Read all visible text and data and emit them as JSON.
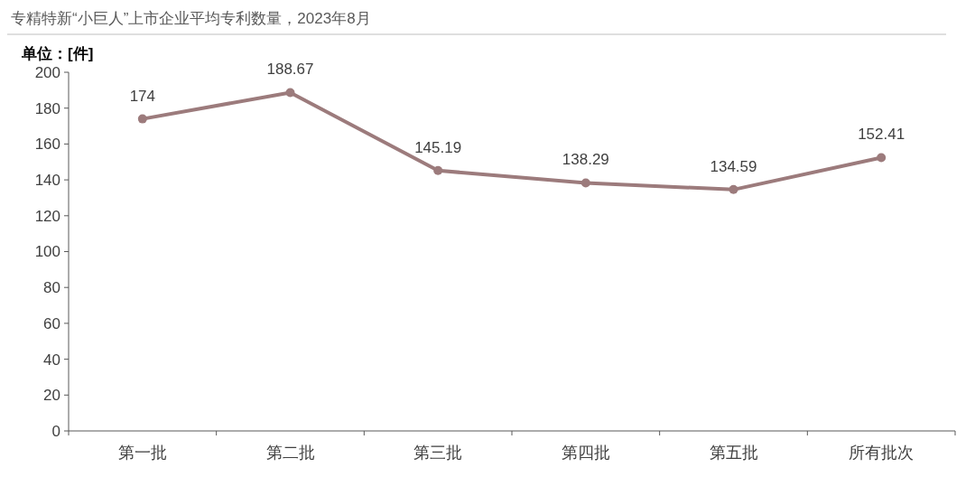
{
  "chart_data": {
    "type": "line",
    "title": "专精特新“小巨人”上市企业平均专利数量，2023年8月",
    "ylabel": "单位：[件]",
    "categories": [
      "第一批",
      "第二批",
      "第三批",
      "第四批",
      "第五批",
      "所有批次"
    ],
    "series": [
      {
        "color": "#9c7b7c",
        "values": [
          174,
          188.67,
          145.19,
          138.29,
          134.59,
          152.41
        ]
      }
    ],
    "ylim": [
      0,
      200
    ],
    "yticks": [
      0,
      20,
      40,
      60,
      80,
      100,
      120,
      140,
      160,
      180,
      200
    ],
    "data_labels": true,
    "marker": "circle"
  }
}
